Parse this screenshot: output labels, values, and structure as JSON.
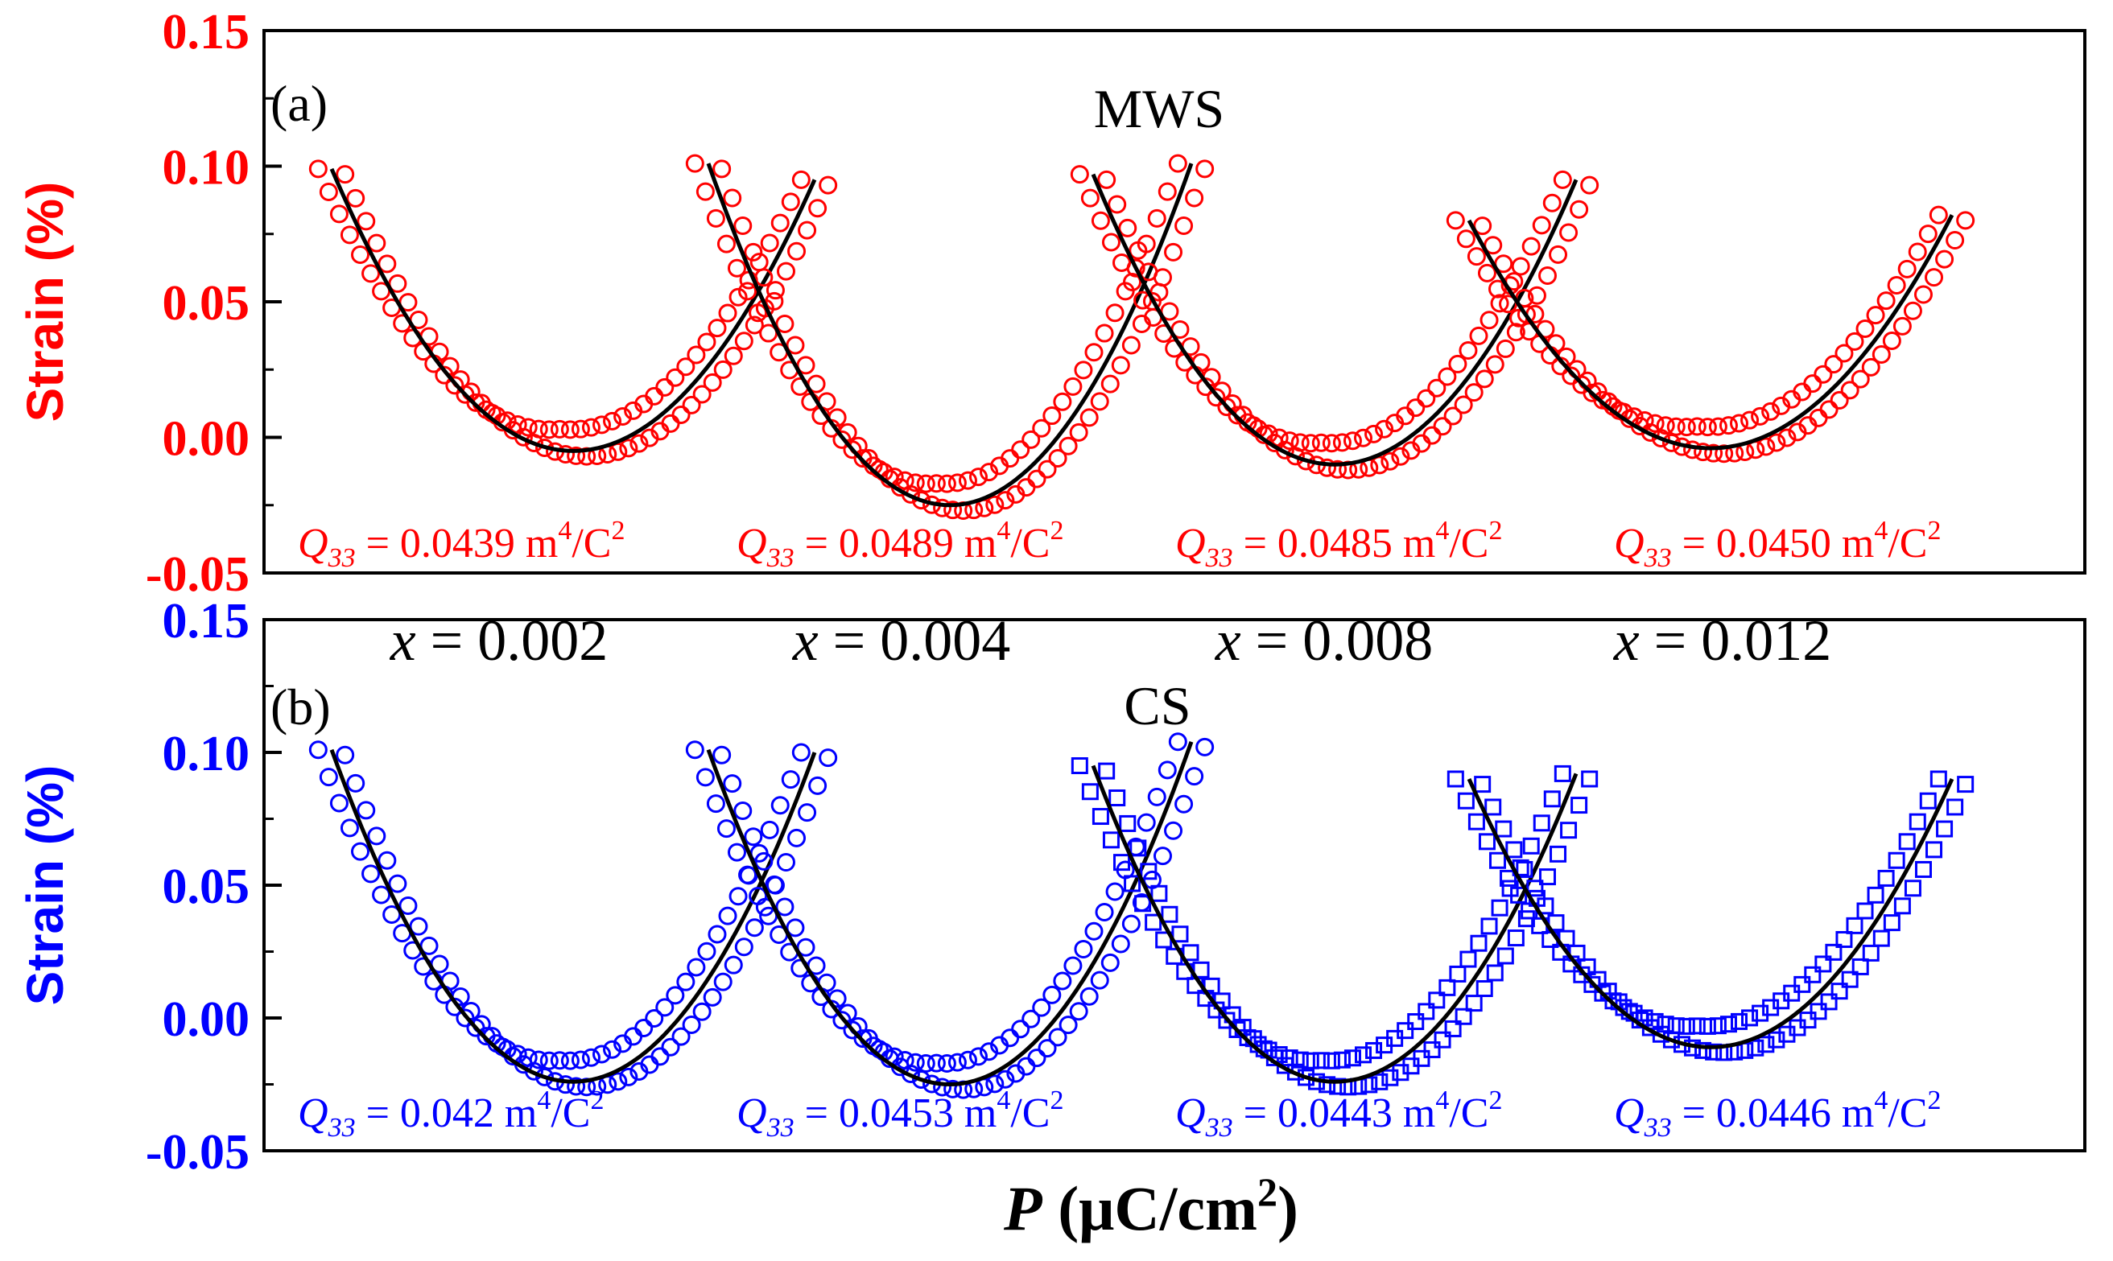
{
  "chart_data": [
    {
      "type": "scatter",
      "panel_label": "(a)",
      "title": "MWS",
      "ylabel": "Strain (%)",
      "ylim": [
        -0.05,
        0.15
      ],
      "yticks": [
        {
          "value": 0.15,
          "label": "0.15"
        },
        {
          "value": 0.1,
          "label": "0.10"
        },
        {
          "value": 0.05,
          "label": "0.05"
        },
        {
          "value": 0.0,
          "label": "0.00"
        },
        {
          "value": -0.05,
          "label": "-0.05"
        }
      ],
      "color": "#ff0000",
      "marker": "circle",
      "series": [
        {
          "name": "x = 0.002",
          "q_label": "Q",
          "q_sub": "33",
          "q_text": " = 0.0439 m",
          "q_exp1": "4",
          "q_mid": "/C",
          "q_exp2": "2",
          "p_min": -9,
          "p_max": 9,
          "vertex": -0.005,
          "left_end": 0.099,
          "right_end": 0.095
        },
        {
          "name": "x = 0.004",
          "q_label": "Q",
          "q_sub": "33",
          "q_text": " = 0.0489 m",
          "q_exp1": "4",
          "q_mid": "/C",
          "q_exp2": "2",
          "p_min": -9,
          "p_max": 9,
          "vertex": -0.025,
          "left_end": 0.101,
          "right_end": 0.101
        },
        {
          "name": "x = 0.008",
          "q_label": "Q",
          "q_sub": "33",
          "q_text": " = 0.0485 m",
          "q_exp1": "4",
          "q_mid": "/C",
          "q_exp2": "2",
          "p_min": -9,
          "p_max": 9,
          "vertex": -0.01,
          "left_end": 0.097,
          "right_end": 0.095
        },
        {
          "name": "x = 0.012",
          "q_label": "Q",
          "q_sub": "33",
          "q_text": " = 0.0450 m",
          "q_exp1": "4",
          "q_mid": "/C",
          "q_exp2": "2",
          "p_min": -9,
          "p_max": 9,
          "vertex": -0.004,
          "left_end": 0.08,
          "right_end": 0.082
        }
      ]
    },
    {
      "type": "scatter",
      "panel_label": "(b)",
      "title": "CS",
      "ylabel": "Strain (%)",
      "xlabel_italic": "P",
      "xlabel_rest": " (μC/cm",
      "xlabel_sup": "2",
      "xlabel_close": ")",
      "ylim": [
        -0.05,
        0.15
      ],
      "yticks": [
        {
          "value": 0.15,
          "label": "0.15"
        },
        {
          "value": 0.1,
          "label": "0.10"
        },
        {
          "value": 0.05,
          "label": "0.05"
        },
        {
          "value": 0.0,
          "label": "0.00"
        },
        {
          "value": -0.05,
          "label": "-0.05"
        }
      ],
      "color": "#0000ff",
      "marker": "circle/square",
      "series": [
        {
          "name": "x = 0.002",
          "q_label": "Q",
          "q_sub": "33",
          "q_text": " = 0.042 m",
          "q_exp1": "4",
          "q_mid": "/C",
          "q_exp2": "2",
          "p_min": -9,
          "p_max": 9,
          "vertex": -0.024,
          "left_end": 0.101,
          "right_end": 0.1
        },
        {
          "name": "x = 0.004",
          "q_label": "Q",
          "q_sub": "33",
          "q_text": " = 0.0453 m",
          "q_exp1": "4",
          "q_mid": "/C",
          "q_exp2": "2",
          "p_min": -9,
          "p_max": 9,
          "vertex": -0.025,
          "left_end": 0.101,
          "right_end": 0.104
        },
        {
          "name": "x = 0.008",
          "q_label": "Q",
          "q_sub": "33",
          "q_text": " = 0.0443 m",
          "q_exp1": "4",
          "q_mid": "/C",
          "q_exp2": "2",
          "p_min": -9,
          "p_max": 9,
          "vertex": -0.024,
          "left_end": 0.095,
          "right_end": 0.092
        },
        {
          "name": "x = 0.012",
          "q_label": "Q",
          "q_sub": "33",
          "q_text": " = 0.0446 m",
          "q_exp1": "4",
          "q_mid": "/C",
          "q_exp2": "2",
          "p_min": -9,
          "p_max": 9,
          "vertex": -0.011,
          "left_end": 0.09,
          "right_end": 0.09
        }
      ]
    }
  ],
  "composition_labels": [
    {
      "var": "x",
      "value": " = 0.002"
    },
    {
      "var": "x",
      "value": " = 0.004"
    },
    {
      "var": "x",
      "value": " = 0.008"
    },
    {
      "var": "x",
      "value": " = 0.012"
    }
  ],
  "fit_color": "#000000"
}
